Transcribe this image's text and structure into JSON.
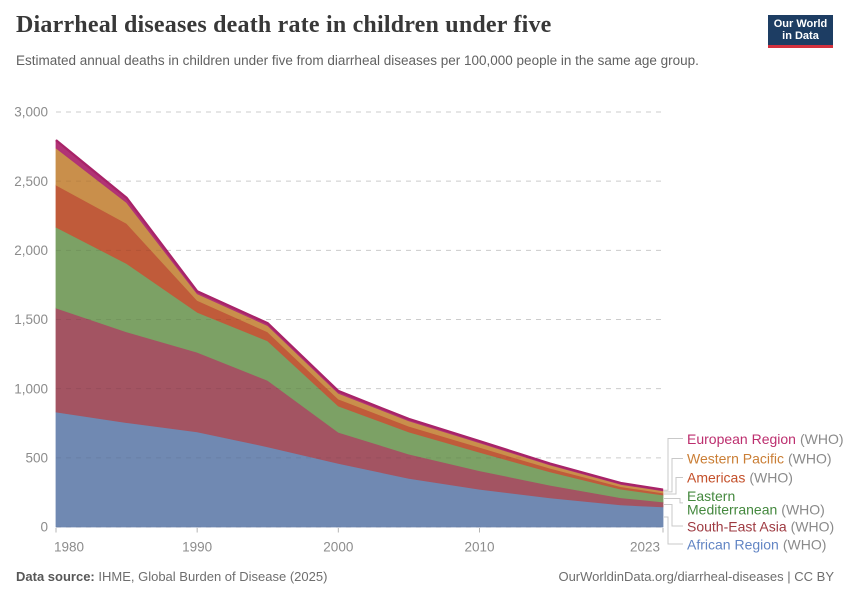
{
  "chart_data": {
    "type": "area",
    "stacked": true,
    "title": "Diarrheal diseases death rate in children under five",
    "subtitle": "Estimated annual deaths in children under five from diarrheal diseases per 100,000 people in the same age group.",
    "x": [
      1980,
      1985,
      1990,
      1995,
      2000,
      2005,
      2010,
      2015,
      2020,
      2023
    ],
    "xlim": [
      1980,
      2023
    ],
    "ylim": [
      0,
      3000
    ],
    "yticks": [
      0,
      500,
      1000,
      1500,
      2000,
      2500,
      3000
    ],
    "ytick_labels": [
      "0",
      "500",
      "1,000",
      "1,500",
      "2,000",
      "2,500",
      "3,000"
    ],
    "xticks": [
      1980,
      1990,
      2000,
      2010,
      2023
    ],
    "grid": "dashed-horizontal",
    "legend_position": "right-of-plot-connected-labels",
    "series": [
      {
        "id": "african",
        "name": "African Region (WHO)",
        "area_color": "#7089b2",
        "label_color": "#6285c4",
        "values": [
          831,
          755,
          688,
          580,
          460,
          352,
          273,
          210,
          160,
          145
        ]
      },
      {
        "id": "southeast_asia",
        "name": "South-East Asia (WHO)",
        "area_color": "#a35462",
        "label_color": "#9e3a41",
        "values": [
          752,
          655,
          575,
          480,
          225,
          175,
          134,
          92,
          52,
          36
        ]
      },
      {
        "id": "eastern_med",
        "name": "Eastern Mediterranean (WHO)",
        "area_color": "#7ca165",
        "label_color": "#44883e",
        "values": [
          585,
          495,
          290,
          285,
          190,
          160,
          134,
          96,
          62,
          50
        ]
      },
      {
        "id": "americas",
        "name": "Americas (WHO)",
        "area_color": "#c05b3a",
        "label_color": "#c4502a",
        "values": [
          304,
          290,
          85,
          65,
          50,
          42,
          35,
          26,
          18,
          15
        ]
      },
      {
        "id": "western_pacific",
        "name": "Western Pacific (WHO)",
        "area_color": "#c98f4b",
        "label_color": "#ca7e35",
        "values": [
          267,
          150,
          48,
          46,
          42,
          38,
          33,
          24,
          17,
          15
        ]
      },
      {
        "id": "european",
        "name": "European Region (WHO)",
        "area_color": "#b13375",
        "label_color": "#bc2e6e",
        "line_color": "#a82368",
        "values": [
          58,
          35,
          18,
          17,
          16,
          14,
          12,
          10,
          9,
          9
        ]
      }
    ],
    "legend": [
      {
        "series": "european",
        "lines": [
          [
            "European Region",
            "(WHO)"
          ]
        ]
      },
      {
        "series": "western_pacific",
        "lines": [
          [
            "Western Pacific",
            "(WHO)"
          ]
        ]
      },
      {
        "series": "americas",
        "lines": [
          [
            "Americas",
            "(WHO)"
          ]
        ]
      },
      {
        "series": "eastern_med",
        "lines": [
          [
            "Eastern",
            ""
          ],
          [
            "Mediterranean",
            "(WHO)"
          ]
        ]
      },
      {
        "series": "southeast_asia",
        "lines": [
          [
            "South-East Asia",
            "(WHO)"
          ]
        ]
      },
      {
        "series": "african",
        "lines": [
          [
            "African Region",
            "(WHO)"
          ]
        ]
      }
    ]
  },
  "header": {
    "logo_line1": "Our World",
    "logo_line2": "in Data"
  },
  "footer": {
    "source_label": "Data source:",
    "source_text": " IHME, Global Burden of Disease (2025)",
    "right_text": "OurWorldinData.org/diarrheal-diseases | CC BY"
  },
  "colors": {
    "grid": "#dcdcdc",
    "axis_text": "#8c8c8c",
    "connector": "#c9c9c9",
    "legend_suffix_gray": "#8a8a8a",
    "logo_bg": "#1d3d63",
    "logo_red": "#d4313e"
  }
}
